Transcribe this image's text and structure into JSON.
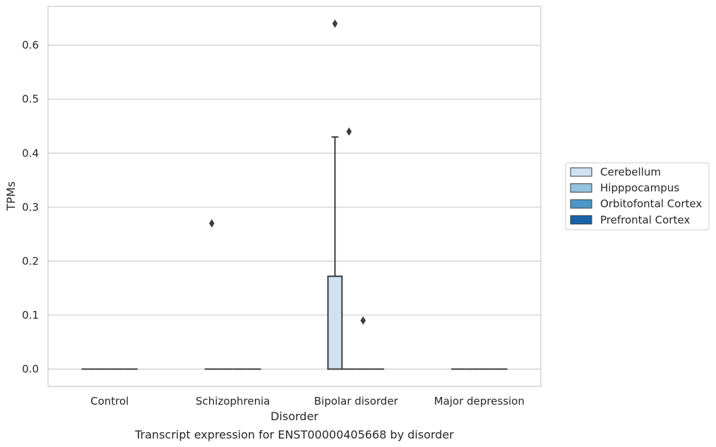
{
  "chart_data": {
    "type": "box",
    "title": "Transcript expression for ENST00000405668 by disorder",
    "xlabel": "Disorder",
    "ylabel": "TPMs",
    "ylim": [
      -0.032,
      0.672
    ],
    "yticks": [
      "0.0",
      "0.1",
      "0.2",
      "0.3",
      "0.4",
      "0.5",
      "0.6"
    ],
    "ytick_values": [
      0.0,
      0.1,
      0.2,
      0.3,
      0.4,
      0.5,
      0.6
    ],
    "grid": "horizontal",
    "legend_position": "right, outside plot",
    "categories": [
      "Control",
      "Schizophrenia",
      "Bipolar disorder",
      "Major depression"
    ],
    "series": [
      {
        "name": "Cerebellum",
        "color": "#d0e1f2",
        "boxes": [
          {
            "category": "Control",
            "q1": 0,
            "median": 0,
            "q3": 0,
            "whisker_low": 0,
            "whisker_high": 0,
            "outliers": []
          },
          {
            "category": "Schizophrenia",
            "q1": 0,
            "median": 0,
            "q3": 0,
            "whisker_low": 0,
            "whisker_high": 0,
            "outliers": [
              0.27
            ]
          },
          {
            "category": "Bipolar disorder",
            "q1": 0,
            "median": 0,
            "q3": 0.172,
            "whisker_low": 0,
            "whisker_high": 0.43,
            "outliers": [
              0.64
            ]
          },
          {
            "category": "Major depression",
            "q1": 0,
            "median": 0,
            "q3": 0,
            "whisker_low": 0,
            "whisker_high": 0,
            "outliers": []
          }
        ]
      },
      {
        "name": "Hipppocampus",
        "color": "#94c4df",
        "boxes": [
          {
            "category": "Control",
            "q1": 0,
            "median": 0,
            "q3": 0,
            "whisker_low": 0,
            "whisker_high": 0,
            "outliers": []
          },
          {
            "category": "Schizophrenia",
            "q1": 0,
            "median": 0,
            "q3": 0,
            "whisker_low": 0,
            "whisker_high": 0,
            "outliers": []
          },
          {
            "category": "Bipolar disorder",
            "q1": 0,
            "median": 0,
            "q3": 0,
            "whisker_low": 0,
            "whisker_high": 0,
            "outliers": [
              0.44
            ]
          },
          {
            "category": "Major depression",
            "q1": 0,
            "median": 0,
            "q3": 0,
            "whisker_low": 0,
            "whisker_high": 0,
            "outliers": []
          }
        ]
      },
      {
        "name": "Orbitofontal Cortex",
        "color": "#4a98c9",
        "boxes": [
          {
            "category": "Control",
            "q1": 0,
            "median": 0,
            "q3": 0,
            "whisker_low": 0,
            "whisker_high": 0,
            "outliers": []
          },
          {
            "category": "Schizophrenia",
            "q1": 0,
            "median": 0,
            "q3": 0,
            "whisker_low": 0,
            "whisker_high": 0,
            "outliers": []
          },
          {
            "category": "Bipolar disorder",
            "q1": 0,
            "median": 0,
            "q3": 0,
            "whisker_low": 0,
            "whisker_high": 0,
            "outliers": [
              0.09
            ]
          },
          {
            "category": "Major depression",
            "q1": 0,
            "median": 0,
            "q3": 0,
            "whisker_low": 0,
            "whisker_high": 0,
            "outliers": []
          }
        ]
      },
      {
        "name": "Prefrontal Cortex",
        "color": "#1764ab",
        "boxes": [
          {
            "category": "Control",
            "q1": 0,
            "median": 0,
            "q3": 0,
            "whisker_low": 0,
            "whisker_high": 0,
            "outliers": []
          },
          {
            "category": "Schizophrenia",
            "q1": 0,
            "median": 0,
            "q3": 0,
            "whisker_low": 0,
            "whisker_high": 0,
            "outliers": []
          },
          {
            "category": "Bipolar disorder",
            "q1": 0,
            "median": 0,
            "q3": 0,
            "whisker_low": 0,
            "whisker_high": 0,
            "outliers": []
          },
          {
            "category": "Major depression",
            "q1": 0,
            "median": 0,
            "q3": 0,
            "whisker_low": 0,
            "whisker_high": 0,
            "outliers": []
          }
        ]
      }
    ]
  }
}
